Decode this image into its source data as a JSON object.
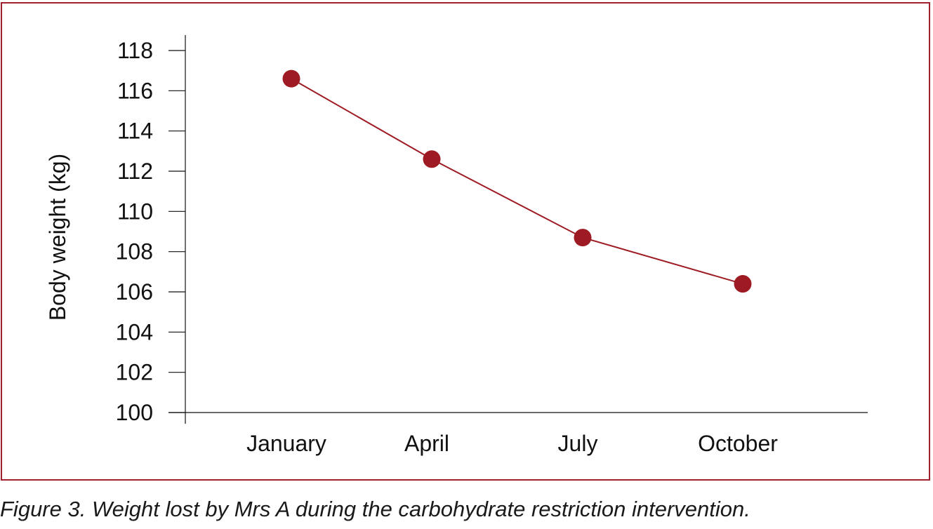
{
  "chart_data": {
    "type": "line",
    "ylabel": "Body weight (kg)",
    "xlabel": "",
    "ylim": [
      100,
      118
    ],
    "y_ticks": [
      100,
      102,
      104,
      106,
      108,
      110,
      112,
      114,
      116,
      118
    ],
    "categories": [
      "January",
      "April",
      "July",
      "October"
    ],
    "series": [
      {
        "values": [
          116.6,
          112.6,
          108.7,
          106.4
        ]
      }
    ],
    "grid": false,
    "legend": "none"
  },
  "caption": "Figure 3. Weight lost by Mrs A during the carbohydrate restriction intervention.",
  "colors": {
    "frame": "#a3212c",
    "series": "#9e1b24",
    "axis": "#111111"
  }
}
